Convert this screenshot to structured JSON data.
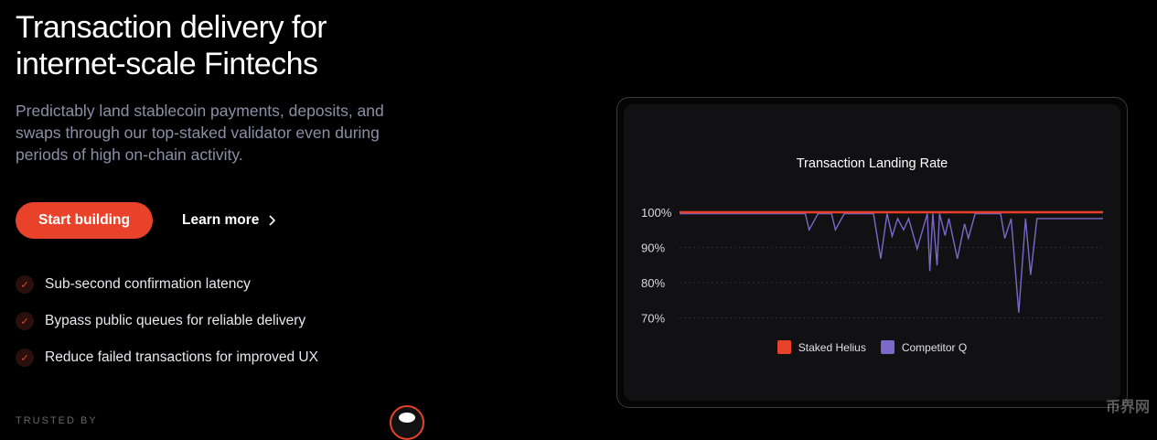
{
  "hero": {
    "title_lines": [
      "Transaction delivery for",
      "internet-scale Fintechs"
    ],
    "subtitle": "Predictably land stablecoin payments, deposits, and swaps through our top-staked validator even during periods of high on-chain activity.",
    "primary_button": "Start building",
    "secondary_link": "Learn more",
    "features": [
      "Sub-second confirmation latency",
      "Bypass public queues for reliable delivery",
      "Reduce failed transactions for improved UX"
    ],
    "trusted_label": "TRUSTED BY"
  },
  "watermark": "币界网",
  "chart_data": {
    "type": "line",
    "title": "Transaction Landing Rate",
    "yticks": [
      "100%",
      "90%",
      "80%",
      "70%"
    ],
    "ylim": [
      70,
      100
    ],
    "grid": true,
    "legend_placement": "bottom",
    "series": [
      {
        "name": "Staked Helius",
        "color": "#e8432a",
        "x": [
          0,
          100
        ],
        "values": [
          100,
          100
        ]
      },
      {
        "name": "Competitor Q",
        "color": "#7b68c8",
        "x": [
          0,
          29.7,
          30.6,
          32.7,
          35.9,
          36.8,
          38.9,
          45.8,
          47.5,
          49.0,
          50.2,
          51.5,
          52.9,
          54.1,
          56.1,
          58.5,
          59.1,
          59.8,
          60.8,
          61.4,
          62.7,
          63.6,
          65.6,
          67.3,
          68.2,
          69.8,
          75.8,
          76.8,
          78.3,
          80.1,
          81.7,
          82.9,
          84.4,
          100
        ],
        "values": [
          99.6,
          99.6,
          95,
          99.6,
          99.6,
          95,
          99.6,
          99.6,
          86.8,
          99.6,
          93.2,
          98.2,
          95,
          98.2,
          89.6,
          99.6,
          83.3,
          99.6,
          84.9,
          99.6,
          93.4,
          98.2,
          86.8,
          96.7,
          92.6,
          99.6,
          99.6,
          92.6,
          98.2,
          71.5,
          98.2,
          82.2,
          98.2,
          98.2
        ]
      }
    ]
  }
}
